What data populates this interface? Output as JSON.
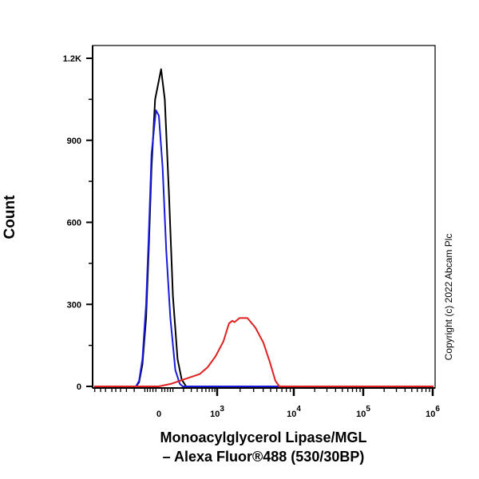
{
  "chart_data": {
    "type": "line",
    "title": "",
    "xlabel_line1": "Monoacylglycerol Lipase/MGL",
    "xlabel_line2": "– Alexa Fluor®488 (530/30BP)",
    "ylabel": "Count",
    "x_scale": "biexponential",
    "ylim": [
      0,
      1200
    ],
    "y_ticks": [
      0,
      300,
      600,
      900,
      1200
    ],
    "y_tick_labels": [
      "0",
      "300",
      "600",
      "900",
      "1.2K"
    ],
    "x_ticks": [
      0,
      1000,
      10000,
      100000,
      1000000
    ],
    "x_tick_labels": [
      {
        "base": "0",
        "exp": ""
      },
      {
        "base": "10",
        "exp": "3"
      },
      {
        "base": "10",
        "exp": "4"
      },
      {
        "base": "10",
        "exp": "5"
      },
      {
        "base": "10",
        "exp": "6"
      }
    ],
    "grid": false,
    "legend": "none",
    "series": [
      {
        "color": "#000000",
        "points": [
          [
            -180,
            0
          ],
          [
            -150,
            15
          ],
          [
            -120,
            80
          ],
          [
            -90,
            250
          ],
          [
            -70,
            500
          ],
          [
            -50,
            800
          ],
          [
            -25,
            1050
          ],
          [
            15,
            1160
          ],
          [
            40,
            1050
          ],
          [
            70,
            700
          ],
          [
            100,
            330
          ],
          [
            140,
            100
          ],
          [
            180,
            25
          ],
          [
            230,
            0
          ]
        ]
      },
      {
        "color": "#1a1adc",
        "points": [
          [
            -180,
            0
          ],
          [
            -150,
            20
          ],
          [
            -120,
            100
          ],
          [
            -90,
            300
          ],
          [
            -70,
            550
          ],
          [
            -50,
            850
          ],
          [
            -20,
            1010
          ],
          [
            0,
            990
          ],
          [
            25,
            800
          ],
          [
            50,
            500
          ],
          [
            80,
            250
          ],
          [
            120,
            60
          ],
          [
            160,
            10
          ],
          [
            190,
            0
          ]
        ]
      },
      {
        "color": "#e02020",
        "points": [
          [
            0,
            0
          ],
          [
            90,
            10
          ],
          [
            200,
            25
          ],
          [
            450,
            45
          ],
          [
            650,
            70
          ],
          [
            930,
            110
          ],
          [
            1210,
            165
          ],
          [
            1430,
            230
          ],
          [
            1580,
            240
          ],
          [
            1690,
            235
          ],
          [
            1960,
            250
          ],
          [
            2490,
            250
          ],
          [
            3160,
            215
          ],
          [
            4020,
            160
          ],
          [
            4870,
            90
          ],
          [
            5760,
            20
          ],
          [
            6480,
            0
          ]
        ]
      }
    ],
    "watermark": "Copyright (c) 2022 Abcam Plc"
  }
}
